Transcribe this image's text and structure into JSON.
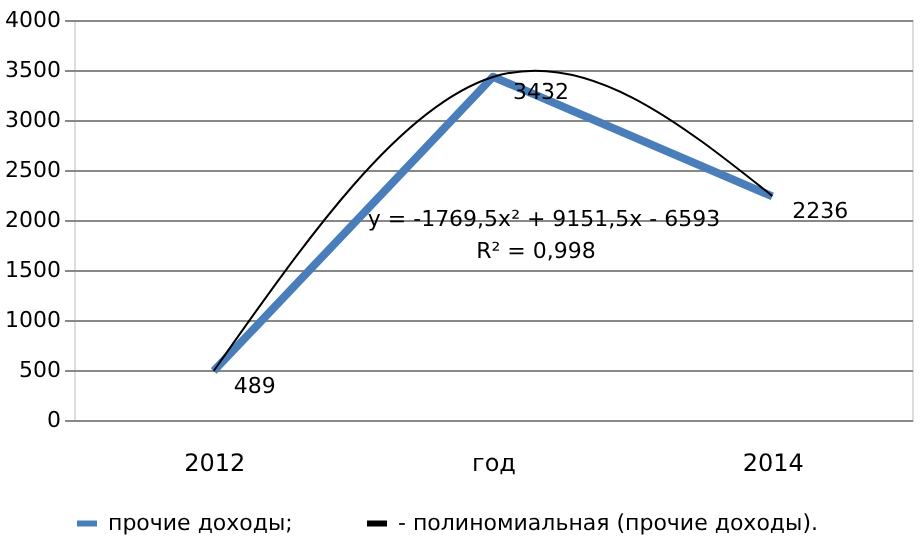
{
  "chart_data": {
    "type": "line",
    "categories": [
      "2012",
      "год",
      "2014"
    ],
    "series": [
      {
        "name": "прочие доходы;",
        "color": "#4a7ebb",
        "values": [
          489,
          3432,
          2236
        ],
        "value_labels": [
          "489",
          "3432",
          "2236"
        ]
      },
      {
        "name": "- полиномиальная (прочие доходы).",
        "color": "#000000",
        "type": "line",
        "values": [
          490,
          3430,
          2240
        ]
      }
    ],
    "ylim": [
      0,
      4000
    ],
    "yticks": [
      0,
      500,
      1000,
      1500,
      2000,
      2500,
      3000,
      3500,
      4000
    ],
    "grid": "y",
    "legend": "bottom",
    "marker": "none",
    "line_style": "solid",
    "annotations": [
      "y = -1769,5x² + 9151,5x - 6593",
      "R² = 0,998"
    ]
  }
}
